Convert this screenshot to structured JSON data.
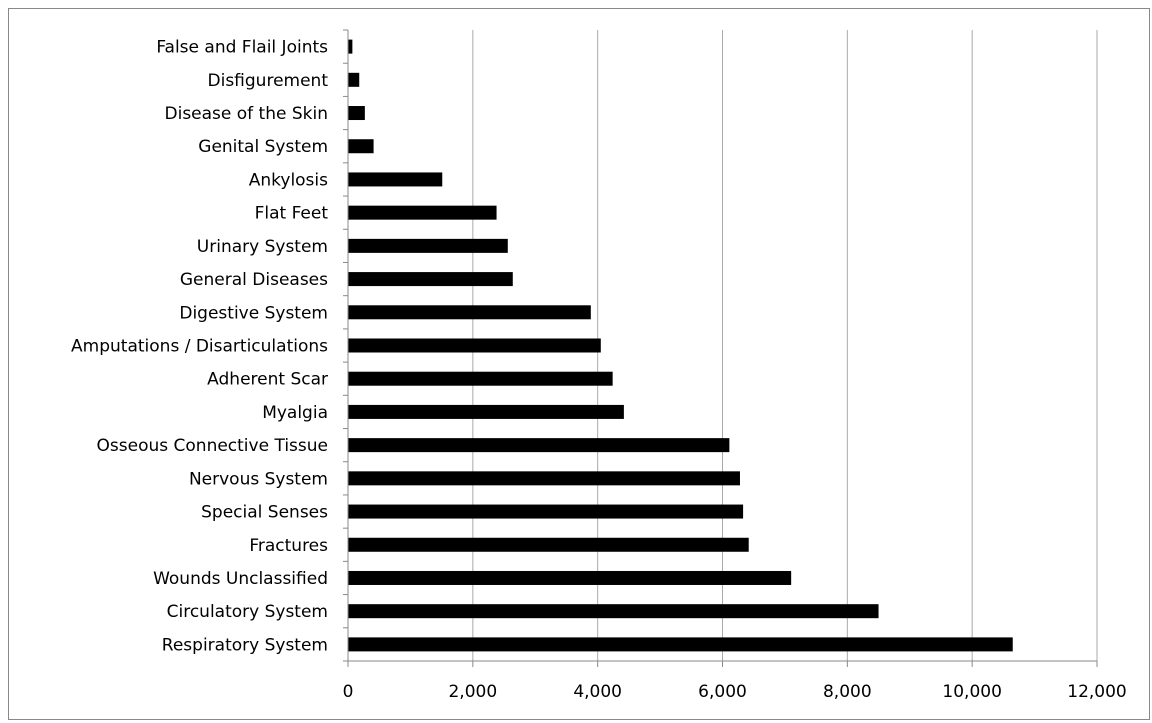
{
  "chart_data": {
    "type": "bar",
    "orientation": "horizontal",
    "categories": [
      "False and Flail Joints",
      "Disfigurement",
      "Disease of the Skin",
      "Genital System",
      "Ankylosis",
      "Flat Feet",
      "Urinary System",
      "General Diseases",
      "Digestive System",
      "Amputations / Disarticulations",
      "Adherent Scar",
      "Myalgia",
      "Osseous Connective Tissue",
      "Nervous System",
      "Special Senses",
      "Fractures",
      "Wounds Unclassified",
      "Circulatory System",
      "Respiratory System"
    ],
    "values": [
      70,
      180,
      270,
      410,
      1510,
      2380,
      2560,
      2640,
      3890,
      4050,
      4240,
      4420,
      6110,
      6280,
      6330,
      6420,
      7100,
      8500,
      10650
    ],
    "x_ticks": [
      0,
      2000,
      4000,
      6000,
      8000,
      10000,
      12000
    ],
    "x_tick_labels": [
      "0",
      "2,000",
      "4,000",
      "6,000",
      "8,000",
      "10,000",
      "12,000"
    ],
    "xlim": [
      0,
      12000
    ],
    "title": "",
    "xlabel": "",
    "ylabel": "",
    "grid": "vertical",
    "legend": "none",
    "bar_color": "#000000",
    "grid_color": "#aaaaaa"
  }
}
